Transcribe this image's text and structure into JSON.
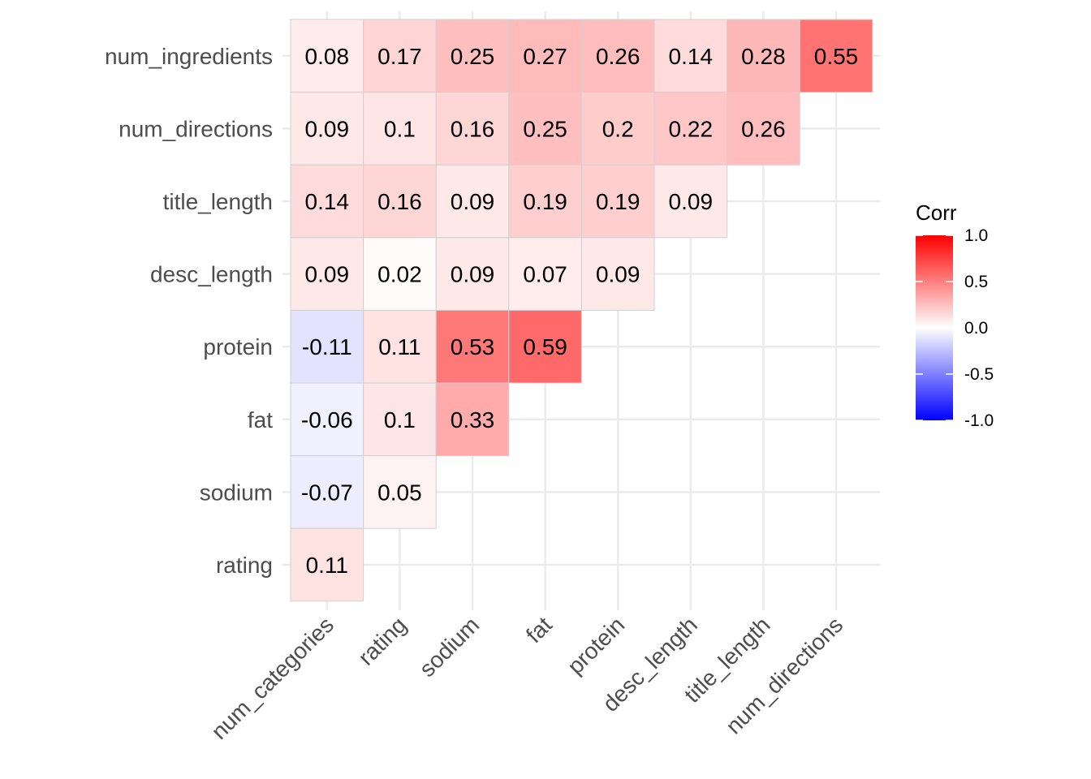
{
  "chart_data": {
    "type": "heatmap",
    "title": "",
    "xlabel": "",
    "ylabel": "",
    "x_categories": [
      "num_categories",
      "rating",
      "sodium",
      "fat",
      "protein",
      "desc_length",
      "title_length",
      "num_directions"
    ],
    "y_categories": [
      "num_ingredients",
      "num_directions",
      "title_length",
      "desc_length",
      "protein",
      "fat",
      "sodium",
      "rating"
    ],
    "values": [
      [
        0.08,
        0.17,
        0.25,
        0.27,
        0.26,
        0.14,
        0.28,
        0.55
      ],
      [
        0.09,
        0.1,
        0.16,
        0.25,
        0.2,
        0.22,
        0.26,
        null
      ],
      [
        0.14,
        0.16,
        0.09,
        0.19,
        0.19,
        0.09,
        null,
        null
      ],
      [
        0.09,
        0.02,
        0.09,
        0.07,
        0.09,
        null,
        null,
        null
      ],
      [
        -0.11,
        0.11,
        0.53,
        0.59,
        null,
        null,
        null,
        null
      ],
      [
        -0.06,
        0.1,
        0.33,
        null,
        null,
        null,
        null,
        null
      ],
      [
        -0.07,
        0.05,
        null,
        null,
        null,
        null,
        null,
        null
      ],
      [
        0.11,
        null,
        null,
        null,
        null,
        null,
        null,
        null
      ]
    ],
    "color_scale": {
      "low": "#0000FF",
      "mid": "#FFFFFF",
      "high": "#FF0000",
      "limits": [
        -1,
        1
      ]
    },
    "legend": {
      "title": "Corr",
      "placement": "right",
      "ticks": [
        1.0,
        0.5,
        0.0,
        -0.5,
        -1.0
      ],
      "tick_labels": [
        "1.0",
        "0.5",
        "0.0",
        "-0.5",
        "-1.0"
      ]
    },
    "grid": true
  }
}
